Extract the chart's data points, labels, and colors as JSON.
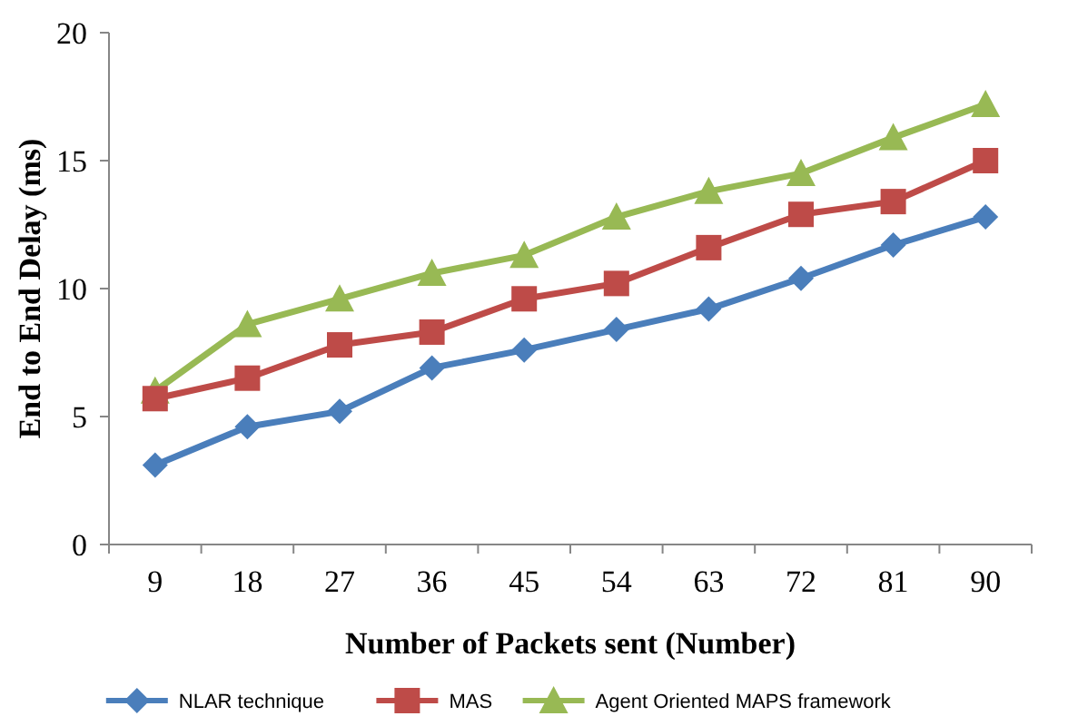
{
  "chart_data": {
    "type": "line",
    "xlabel": "Number of Packets sent (Number)",
    "ylabel": "End to End Delay (ms)",
    "categories": [
      "9",
      "18",
      "27",
      "36",
      "45",
      "54",
      "63",
      "72",
      "81",
      "90"
    ],
    "series": [
      {
        "name": "NLAR technique",
        "color": "#4a7ebb",
        "marker": "diamond",
        "values": [
          3.1,
          4.6,
          5.2,
          6.9,
          7.6,
          8.4,
          9.2,
          10.4,
          11.7,
          12.8
        ]
      },
      {
        "name": "MAS",
        "color": "#be4b48",
        "marker": "square",
        "values": [
          5.7,
          6.5,
          7.8,
          8.3,
          9.6,
          10.2,
          11.6,
          12.9,
          13.4,
          15.0
        ]
      },
      {
        "name": "Agent Oriented MAPS framework",
        "color": "#98b954",
        "marker": "triangle",
        "values": [
          6.0,
          8.6,
          9.6,
          10.6,
          11.3,
          12.8,
          13.8,
          14.5,
          15.9,
          17.2
        ]
      }
    ],
    "ylim": [
      0,
      20
    ],
    "yticks": [
      0,
      5,
      10,
      15,
      20
    ],
    "grid": false,
    "legend": "bottom"
  }
}
